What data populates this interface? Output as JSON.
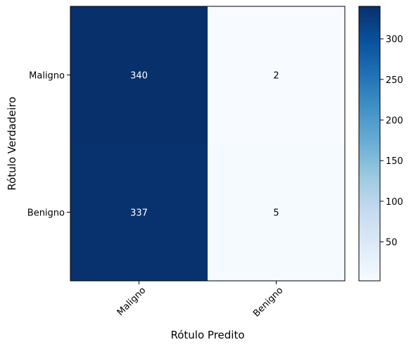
{
  "chart_data": {
    "type": "heatmap",
    "xlabel": "Rótulo Predito",
    "ylabel": "Rótulo Verdadeiro",
    "x_categories": [
      "Maligno",
      "Benigno"
    ],
    "y_categories": [
      "Maligno",
      "Benigno"
    ],
    "values": [
      [
        340,
        2
      ],
      [
        337,
        5
      ]
    ],
    "colormap": "Blues",
    "colorbar": {
      "min": 2,
      "max": 340,
      "ticks": [
        50,
        100,
        150,
        200,
        250,
        300
      ]
    },
    "grid": false
  }
}
